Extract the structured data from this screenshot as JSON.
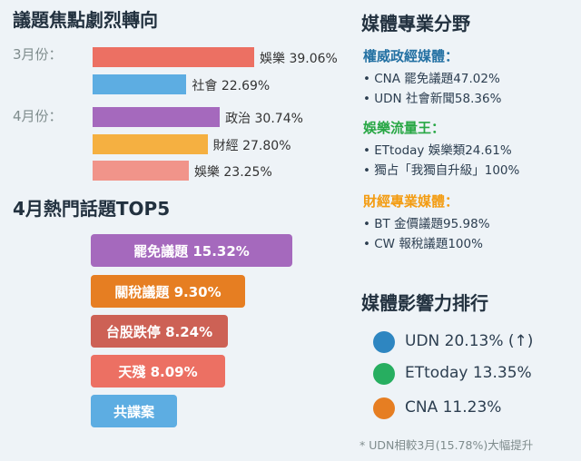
{
  "left": {
    "title": "議題焦點劇烈轉向",
    "months": [
      {
        "label": "3月份：",
        "topics": [
          {
            "name": "娛樂",
            "value": 39.06,
            "display": "娛樂 39.06%",
            "color": "#ec7063"
          },
          {
            "name": "社會",
            "value": 22.69,
            "display": "社會 22.69%",
            "color": "#5dade2"
          }
        ]
      },
      {
        "label": "4月份：",
        "topics": [
          {
            "name": "政治",
            "value": 30.74,
            "display": "政治 30.74%",
            "color": "#a569bd"
          },
          {
            "name": "財經",
            "value": 27.8,
            "display": "財經 27.80%",
            "color": "#f5b041"
          },
          {
            "name": "娛樂",
            "value": 23.25,
            "display": "娛樂 23.25%",
            "color": "#f1948a"
          }
        ]
      }
    ]
  },
  "top5": {
    "title": "4月熱門話題TOP5",
    "items": [
      {
        "label": "罷免議題 15.32%",
        "value": 15.32,
        "color": "#a569bd"
      },
      {
        "label": "關稅議題 9.30%",
        "value": 9.3,
        "color": "#e67e22"
      },
      {
        "label": "台股跌停 8.24%",
        "value": 8.24,
        "color": "#cd6155"
      },
      {
        "label": "天殘 8.09%",
        "value": 8.09,
        "color": "#ec7063"
      },
      {
        "label": "共諜案",
        "value": null,
        "color": "#5dade2"
      }
    ]
  },
  "media": {
    "title": "媒體專業分野",
    "groups": [
      {
        "title": "權威政經媒體：",
        "color": "#2471a3",
        "items": [
          "CNA 罷免議題47.02%",
          "UDN 社會新聞58.36%"
        ]
      },
      {
        "title": "娛樂流量王：",
        "color": "#28a745",
        "items": [
          "ETtoday 娛樂類24.61%",
          "獨占「我獨自升級」100%"
        ]
      },
      {
        "title": "財經專業媒體：",
        "color": "#f39c12",
        "items": [
          "BT 金價議題95.98%",
          "CW 報稅議題100%"
        ]
      }
    ],
    "bullet": "•"
  },
  "influence": {
    "title": "媒體影響力排行",
    "items": [
      {
        "label": "UDN 20.13% (↑)",
        "color": "#2e86c1"
      },
      {
        "label": "ETtoday 13.35%",
        "color": "#27ae60"
      },
      {
        "label": "CNA 11.23%",
        "color": "#e67e22"
      }
    ],
    "footnote": "* UDN相較3月(15.78%)大幅提升"
  },
  "chart_data": [
    {
      "type": "bar",
      "orientation": "horizontal",
      "categories": [
        "3月份：娛樂",
        "3月份：社會",
        "4月份：政治",
        "4月份：財經",
        "4月份：娛樂"
      ],
      "values": [
        39.06,
        22.69,
        30.74,
        27.8,
        23.25
      ],
      "title": "議題焦點劇烈轉向"
    },
    {
      "type": "bar",
      "orientation": "horizontal",
      "categories": [
        "罷免議題",
        "關稅議題",
        "台股跌停",
        "天殘",
        "共諜案"
      ],
      "values": [
        15.32,
        9.3,
        8.24,
        8.09,
        null
      ],
      "title": "4月熱門話題TOP5"
    }
  ]
}
